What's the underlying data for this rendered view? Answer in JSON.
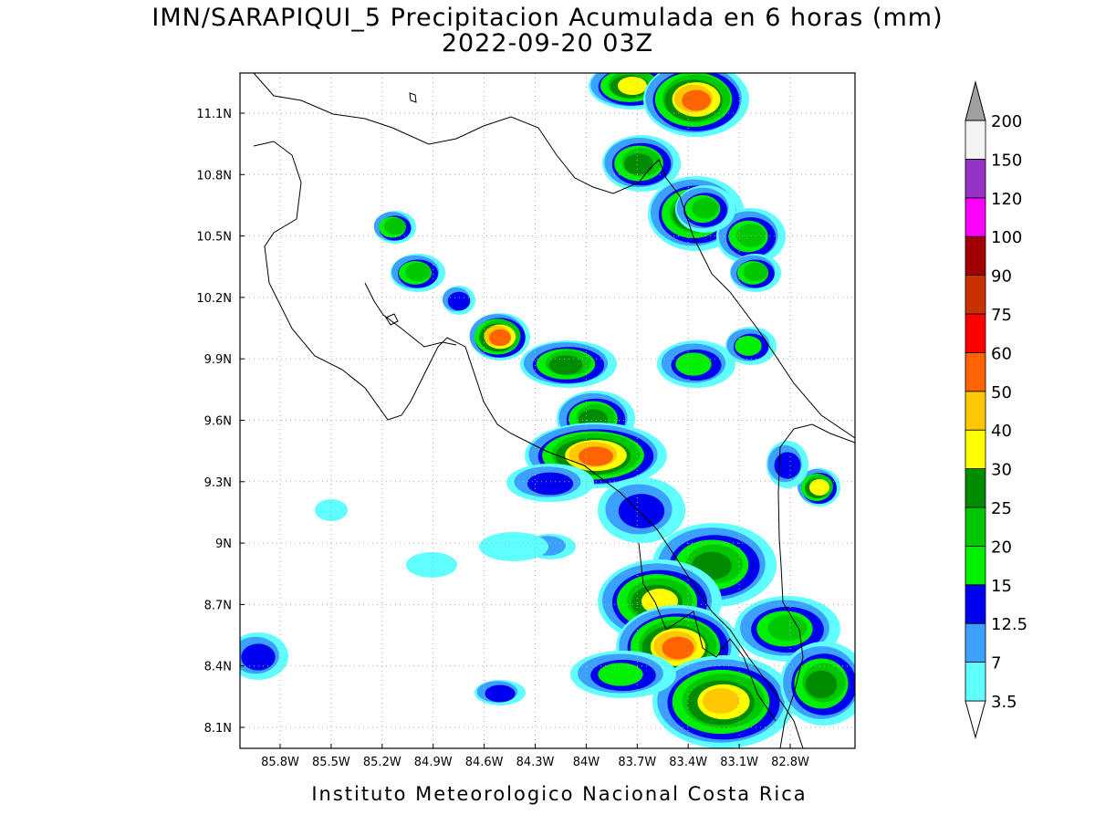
{
  "header": {
    "title": "IMN/SARAPIQUI_5 Precipitacion Acumulada en 6 horas (mm)",
    "subtitle": "2022-09-20 03Z"
  },
  "map": {
    "lat_labels": [
      "11.1N",
      "10.8N",
      "10.5N",
      "10.2N",
      "9.9N",
      "9.6N",
      "9.3N",
      "9N",
      "8.7N",
      "8.4N",
      "8.1N"
    ],
    "lon_labels": [
      "85.8W",
      "85.5W",
      "85.2W",
      "84.9W",
      "84.6W",
      "84.3W",
      "84W",
      "83.7W",
      "83.4W",
      "83.1W",
      "82.8W"
    ]
  },
  "legend": {
    "labels": [
      "3.5",
      "7",
      "12.5",
      "15",
      "20",
      "25",
      "30",
      "40",
      "50",
      "60",
      "75",
      "90",
      "100",
      "120",
      "150",
      "200"
    ],
    "colors": [
      "#ffffff",
      "#60ffff",
      "#3ca0ff",
      "#0000f0",
      "#00f000",
      "#00c800",
      "#008c00",
      "#ffff00",
      "#ffc800",
      "#ff6400",
      "#ff0000",
      "#c83200",
      "#a00000",
      "#ff00ff",
      "#9632c8",
      "#f4f4f4",
      "#a0a0a0"
    ]
  },
  "footer": "Instituto Meteorologico Nacional Costa Rica"
}
